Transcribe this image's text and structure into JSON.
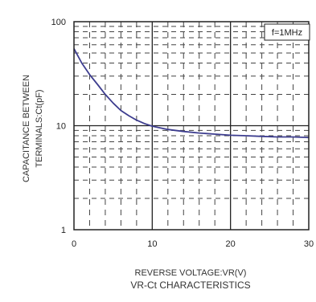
{
  "chart_data": {
    "type": "line",
    "title": "VR-Ct CHARACTERISTICS",
    "xlabel": "REVERSE VOLTAGE:VR(V)",
    "ylabel_lines": [
      "CAPACITANCE BETWEEN",
      "TERMINALS:Ct(pF)"
    ],
    "annotation": "f=1MHz",
    "x_ticks": [
      "0",
      "10",
      "20",
      "30"
    ],
    "y_ticks": [
      "1",
      "10",
      "100"
    ],
    "xlim": [
      0,
      30
    ],
    "ylim": [
      1,
      100
    ],
    "y_scale": "log",
    "grid": true,
    "color": "#3d3d8f",
    "series": [
      {
        "x": [
          0,
          1,
          2,
          3,
          4,
          5,
          6,
          7,
          8,
          9,
          10,
          12,
          14,
          16,
          18,
          20,
          22,
          24,
          26,
          28,
          30
        ],
        "y": [
          55,
          40,
          31,
          25,
          20,
          16.5,
          14,
          12.5,
          11.3,
          10.5,
          9.9,
          9.2,
          8.8,
          8.5,
          8.3,
          8.1,
          8.0,
          7.9,
          7.8,
          7.8,
          7.7
        ]
      }
    ]
  }
}
